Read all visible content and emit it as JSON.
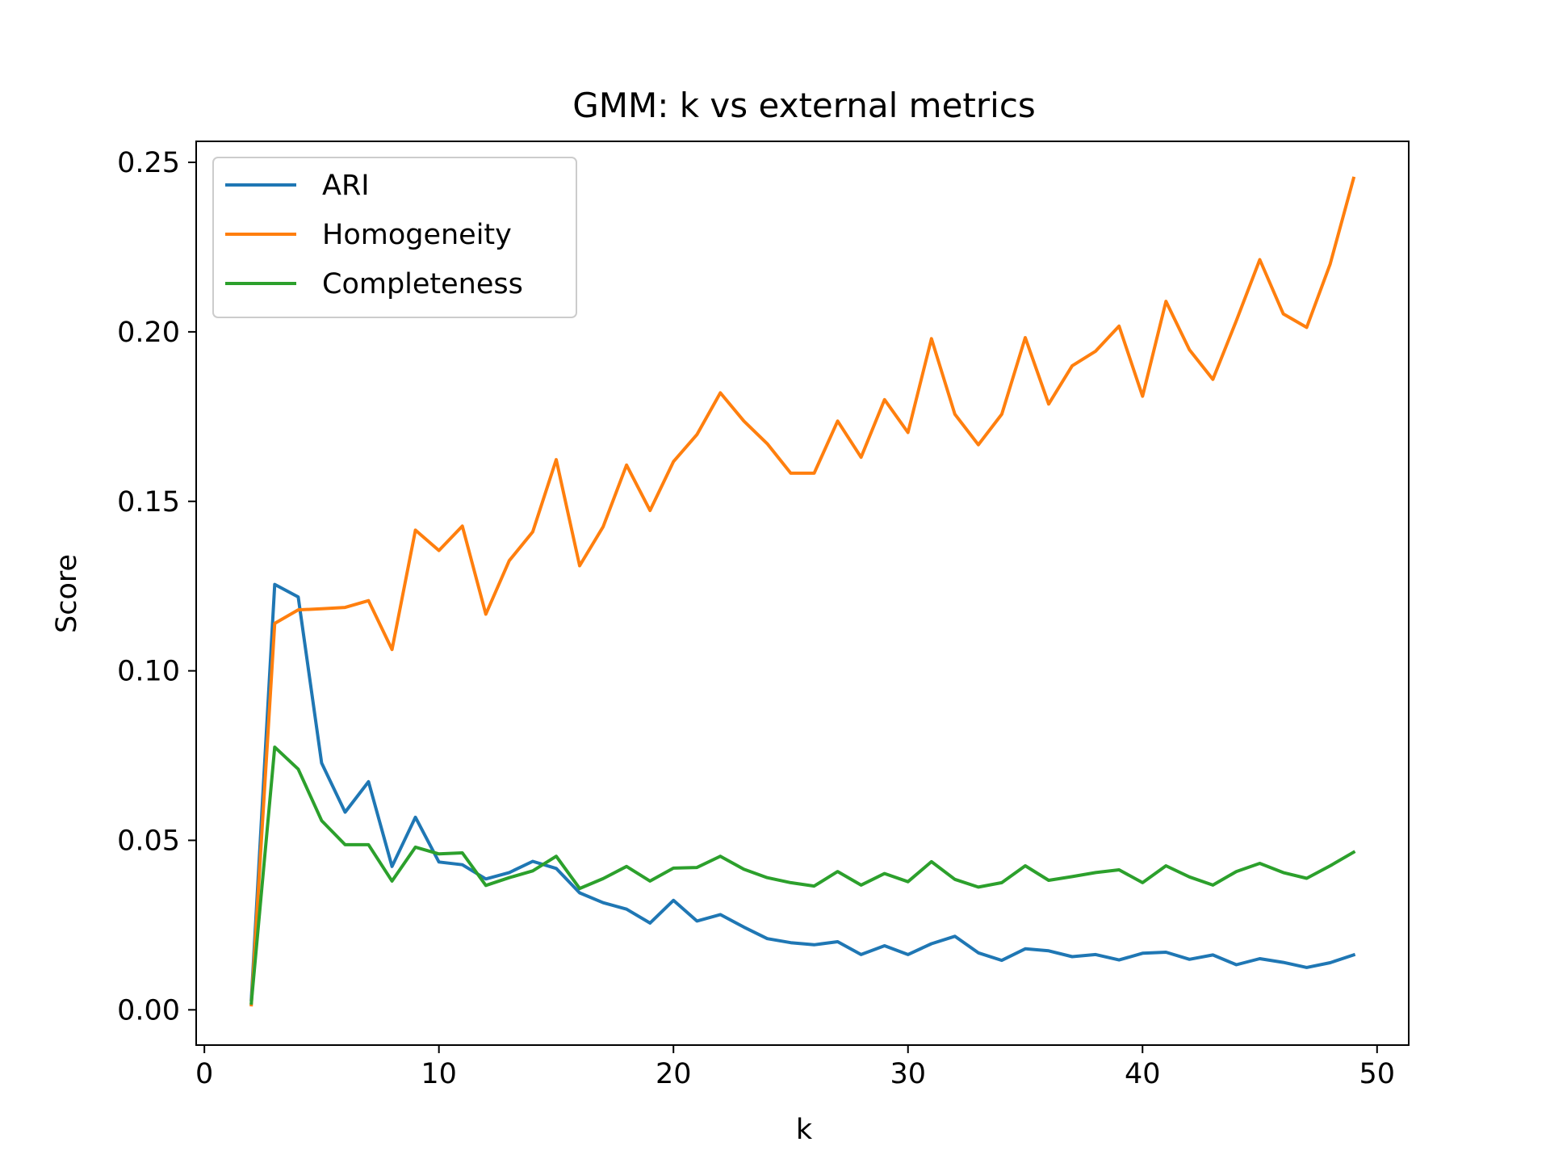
{
  "chart_data": {
    "type": "line",
    "title": "GMM: k vs external metrics",
    "xlabel": "k",
    "ylabel": "Score",
    "xlim": [
      -0.35,
      51.35
    ],
    "ylim": [
      -0.0104,
      0.2562
    ],
    "xticks": [
      0,
      10,
      20,
      30,
      40,
      50
    ],
    "xtick_labels": [
      "0",
      "10",
      "20",
      "30",
      "40",
      "50"
    ],
    "yticks": [
      0.0,
      0.05,
      0.1,
      0.15,
      0.2,
      0.25
    ],
    "ytick_labels": [
      "0.00",
      "0.05",
      "0.10",
      "0.15",
      "0.20",
      "0.25"
    ],
    "grid": false,
    "legend_position": "upper-left",
    "x": [
      2,
      3,
      4,
      5,
      6,
      7,
      8,
      9,
      10,
      11,
      12,
      13,
      14,
      15,
      16,
      17,
      18,
      19,
      20,
      21,
      22,
      23,
      24,
      25,
      26,
      27,
      28,
      29,
      30,
      31,
      32,
      33,
      34,
      35,
      36,
      37,
      38,
      39,
      40,
      41,
      42,
      43,
      44,
      45,
      46,
      47,
      48,
      49
    ],
    "series": [
      {
        "name": "ARI",
        "color": "#1f77b4",
        "values": [
          0.003,
          0.1255,
          0.1218,
          0.0728,
          0.0583,
          0.0673,
          0.0423,
          0.0568,
          0.0436,
          0.0428,
          0.0386,
          0.0405,
          0.0438,
          0.0417,
          0.0345,
          0.0316,
          0.0297,
          0.0256,
          0.0323,
          0.0262,
          0.0281,
          0.0244,
          0.021,
          0.0198,
          0.0192,
          0.0201,
          0.0163,
          0.0189,
          0.0163,
          0.0195,
          0.0217,
          0.0168,
          0.0146,
          0.018,
          0.0174,
          0.0157,
          0.0163,
          0.0147,
          0.0167,
          0.017,
          0.0149,
          0.0162,
          0.0133,
          0.0151,
          0.014,
          0.0125,
          0.0139,
          0.0162
        ]
      },
      {
        "name": "Homogeneity",
        "color": "#ff7f0e",
        "values": [
          0.0015,
          0.114,
          0.118,
          0.1183,
          0.1187,
          0.1207,
          0.1063,
          0.1415,
          0.1355,
          0.1427,
          0.1167,
          0.1325,
          0.141,
          0.1623,
          0.131,
          0.1425,
          0.1607,
          0.1473,
          0.1617,
          0.1697,
          0.182,
          0.1737,
          0.167,
          0.1583,
          0.1583,
          0.1737,
          0.163,
          0.18,
          0.1703,
          0.198,
          0.1757,
          0.1667,
          0.1757,
          0.1983,
          0.1787,
          0.19,
          0.1943,
          0.2017,
          0.181,
          0.209,
          0.1947,
          0.186,
          0.2033,
          0.2213,
          0.2053,
          0.2013,
          0.22,
          0.2453
        ]
      },
      {
        "name": "Completeness",
        "color": "#2ca02c",
        "values": [
          0.002,
          0.0775,
          0.071,
          0.0558,
          0.0487,
          0.0487,
          0.038,
          0.048,
          0.046,
          0.0463,
          0.0367,
          0.039,
          0.041,
          0.0453,
          0.0358,
          0.0387,
          0.0423,
          0.038,
          0.0418,
          0.042,
          0.0453,
          0.0415,
          0.039,
          0.0375,
          0.0365,
          0.0408,
          0.0368,
          0.0402,
          0.0378,
          0.0437,
          0.0385,
          0.0362,
          0.0375,
          0.0425,
          0.0382,
          0.0393,
          0.0405,
          0.0413,
          0.0375,
          0.0425,
          0.0392,
          0.0368,
          0.0408,
          0.0432,
          0.0405,
          0.0388,
          0.0425,
          0.0465
        ]
      }
    ]
  }
}
